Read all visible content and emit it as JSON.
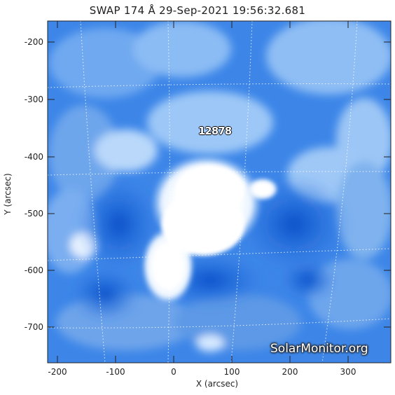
{
  "title": "SWAP 174 Å 29-Sep-2021 19:56:32.681",
  "axes": {
    "xlabel": "X (arcsec)",
    "ylabel": "Y (arcsec)",
    "x_ticks": [
      "-200",
      "-100",
      "0",
      "100",
      "200",
      "300"
    ],
    "y_ticks": [
      "-200",
      "-300",
      "-400",
      "-500",
      "-600",
      "-700"
    ]
  },
  "region_label": "12878",
  "watermark": "SolarMonitor.org",
  "colors": {
    "background_blue": "#3b82e6",
    "deep_blue": "#0a4fc9",
    "bright_core": "#ffffff",
    "grid_lines": "#ffffff"
  }
}
